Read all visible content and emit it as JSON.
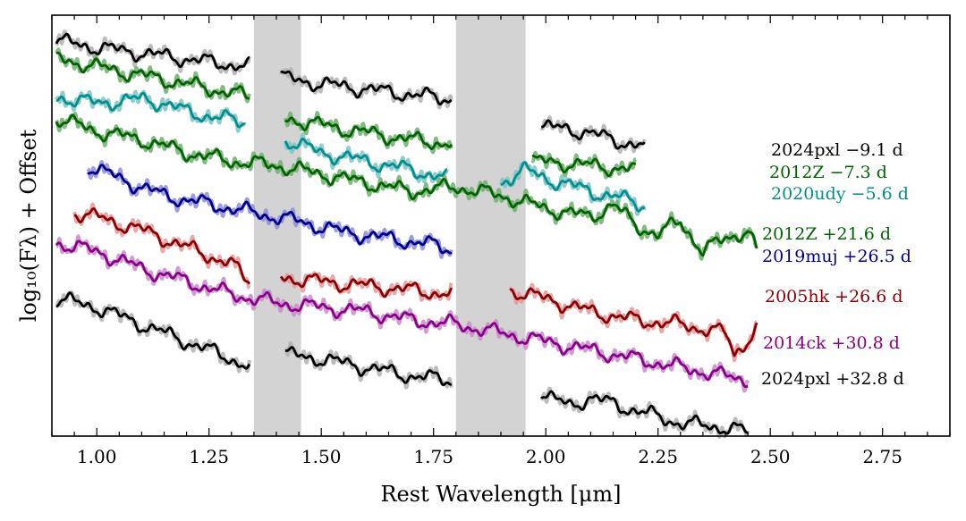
{
  "chart_data": {
    "type": "line",
    "title": "",
    "xlabel": "Rest Wavelength [μm]",
    "ylabel": "log₁₀(Fλ) + Offset",
    "xlim": [
      0.9,
      2.9
    ],
    "ylim": [
      -9.2,
      0.6
    ],
    "xticks": [
      1.0,
      1.25,
      1.5,
      1.75,
      2.0,
      2.25,
      2.5,
      2.75
    ],
    "xtick_labels": [
      "1.00",
      "1.25",
      "1.50",
      "1.75",
      "2.00",
      "2.25",
      "2.50",
      "2.75"
    ],
    "grid": false,
    "legend_position": "right",
    "shaded_bands": [
      {
        "name": "telluric-band-1",
        "x0": 1.35,
        "x1": 1.455,
        "color": "#d3d3d3"
      },
      {
        "name": "telluric-band-2",
        "x0": 1.8,
        "x1": 1.955,
        "color": "#d3d3d3"
      }
    ],
    "series": [
      {
        "name": "2024pxl −9.1 d",
        "color": "#000000",
        "fill": "#b0b0b0",
        "segments": [
          {
            "x": [
              0.91,
              1.0,
              1.1,
              1.2,
              1.3,
              1.34
            ],
            "y": [
              0.0,
              -0.15,
              -0.28,
              -0.42,
              -0.55,
              -0.6
            ]
          },
          {
            "x": [
              1.41,
              1.5,
              1.6,
              1.7,
              1.79
            ],
            "y": [
              -0.85,
              -1.0,
              -1.12,
              -1.25,
              -1.35
            ]
          },
          {
            "x": [
              1.99,
              2.05,
              2.1,
              2.15,
              2.2,
              2.22
            ],
            "y": [
              -2.0,
              -2.05,
              -2.15,
              -2.3,
              -2.42,
              -2.45
            ]
          }
        ]
      },
      {
        "name": "2012Z −7.3 d",
        "color": "#006400",
        "fill": "#6fae6f",
        "segments": [
          {
            "x": [
              0.91,
              1.0,
              1.1,
              1.2,
              1.34
            ],
            "y": [
              -0.4,
              -0.6,
              -0.8,
              -1.0,
              -1.3
            ]
          },
          {
            "x": [
              1.42,
              1.55,
              1.7,
              1.79
            ],
            "y": [
              -1.8,
              -2.05,
              -2.3,
              -2.4
            ]
          },
          {
            "x": [
              1.97,
              2.05,
              2.1,
              2.2
            ],
            "y": [
              -2.8,
              -2.85,
              -2.9,
              -3.0
            ]
          }
        ]
      },
      {
        "name": "2020udy −5.6 d",
        "color": "#009090",
        "fill": "#7ec4c4",
        "segments": [
          {
            "x": [
              0.91,
              1.0,
              1.1,
              1.15,
              1.2,
              1.33
            ],
            "y": [
              -1.3,
              -1.45,
              -1.35,
              -1.45,
              -1.65,
              -1.9
            ]
          },
          {
            "x": [
              1.42,
              1.5,
              1.6,
              1.7,
              1.78
            ],
            "y": [
              -2.3,
              -2.6,
              -2.8,
              -3.0,
              -3.2
            ]
          },
          {
            "x": [
              1.9,
              1.95,
              2.0,
              2.1,
              2.2,
              2.22
            ],
            "y": [
              -3.3,
              -3.0,
              -3.2,
              -3.5,
              -3.75,
              -3.85
            ]
          }
        ]
      },
      {
        "name": "2012Z +21.6 d",
        "color": "#006400",
        "fill": "#6fae6f",
        "segments": [
          {
            "x": [
              0.91,
              1.0,
              1.1,
              1.2,
              1.3,
              1.4,
              1.5,
              1.6,
              1.7,
              1.8,
              1.9,
              2.0,
              2.1,
              2.15,
              2.2,
              2.25,
              2.3,
              2.35,
              2.4,
              2.45,
              2.47
            ],
            "y": [
              -1.8,
              -2.1,
              -2.3,
              -2.6,
              -2.8,
              -2.9,
              -3.1,
              -3.3,
              -3.5,
              -3.4,
              -3.6,
              -3.9,
              -4.1,
              -3.8,
              -4.3,
              -4.5,
              -4.2,
              -4.9,
              -4.6,
              -4.4,
              -4.9
            ]
          }
        ]
      },
      {
        "name": "2019muj +26.5 d",
        "color": "#00008b",
        "fill": "#8c8cd9",
        "segments": [
          {
            "x": [
              0.98,
              1.05,
              1.15,
              1.25,
              1.35,
              1.45,
              1.55,
              1.65,
              1.75,
              1.79
            ],
            "y": [
              -2.9,
              -3.2,
              -3.6,
              -3.8,
              -4.0,
              -4.2,
              -4.45,
              -4.6,
              -4.75,
              -4.85
            ]
          }
        ]
      },
      {
        "name": "2005hk +26.6 d",
        "color": "#8b0000",
        "fill": "#e09a9a",
        "segments": [
          {
            "x": [
              0.95,
              1.0,
              1.1,
              1.2,
              1.3,
              1.34
            ],
            "y": [
              -4.0,
              -4.1,
              -4.4,
              -4.8,
              -5.2,
              -5.6
            ]
          },
          {
            "x": [
              1.41,
              1.5,
              1.6,
              1.7,
              1.79
            ],
            "y": [
              -5.5,
              -5.6,
              -5.7,
              -5.8,
              -5.9
            ]
          },
          {
            "x": [
              1.92,
              2.0,
              2.1,
              2.2,
              2.3,
              2.4,
              2.42,
              2.47
            ],
            "y": [
              -5.8,
              -6.0,
              -6.3,
              -6.5,
              -6.6,
              -6.8,
              -7.3,
              -6.7
            ]
          }
        ]
      },
      {
        "name": "2014ck +30.8 d",
        "color": "#8b008b",
        "fill": "#c98bc9",
        "segments": [
          {
            "x": [
              0.91,
              1.0,
              1.1,
              1.2,
              1.3,
              1.4,
              1.5,
              1.6,
              1.7,
              1.8,
              1.9,
              2.0,
              2.1,
              2.2,
              2.3,
              2.4,
              2.45
            ],
            "y": [
              -4.7,
              -4.9,
              -5.3,
              -5.6,
              -5.9,
              -6.1,
              -6.2,
              -6.3,
              -6.5,
              -6.6,
              -6.8,
              -7.0,
              -7.2,
              -7.4,
              -7.6,
              -7.8,
              -7.9
            ]
          }
        ]
      },
      {
        "name": "2024pxl +32.8 d",
        "color": "#000000",
        "fill": "#b0b0b0",
        "segments": [
          {
            "x": [
              0.91,
              1.0,
              1.1,
              1.2,
              1.3,
              1.34
            ],
            "y": [
              -6.0,
              -6.2,
              -6.6,
              -7.0,
              -7.4,
              -7.6
            ]
          },
          {
            "x": [
              1.42,
              1.5,
              1.6,
              1.7,
              1.79
            ],
            "y": [
              -7.3,
              -7.4,
              -7.6,
              -7.8,
              -7.9
            ]
          },
          {
            "x": [
              1.99,
              2.05,
              2.1,
              2.2,
              2.3,
              2.4,
              2.45
            ],
            "y": [
              -8.2,
              -8.5,
              -8.3,
              -8.6,
              -8.9,
              -9.0,
              -9.1
            ]
          }
        ]
      }
    ]
  }
}
